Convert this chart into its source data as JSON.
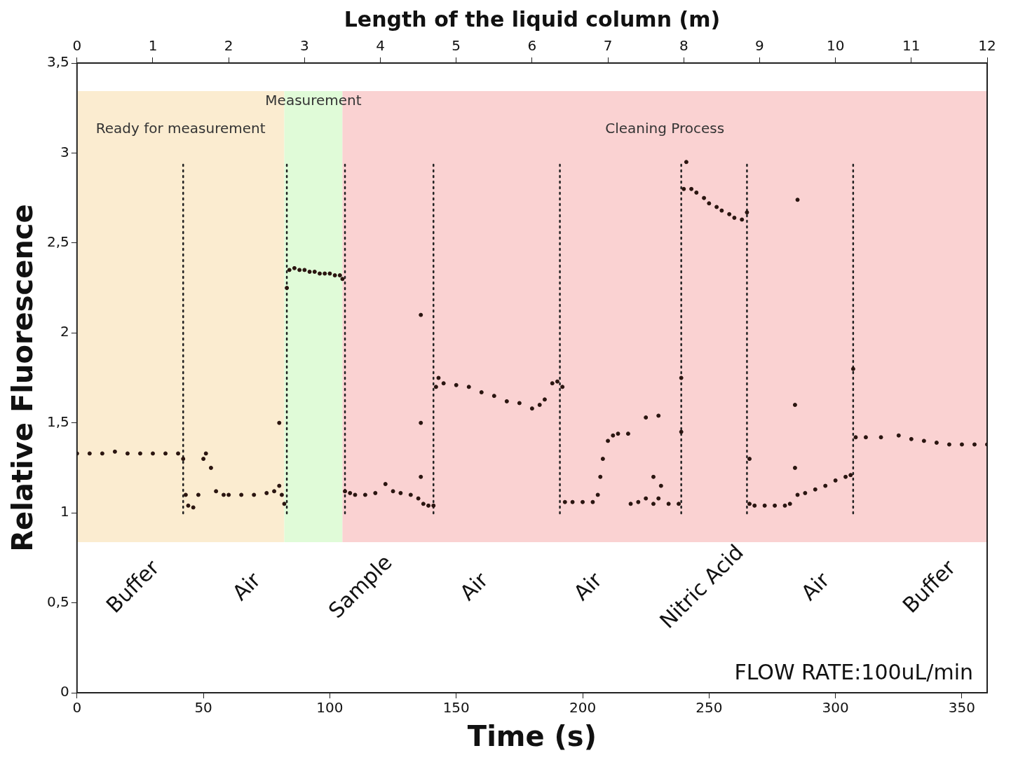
{
  "chart_data": {
    "type": "scatter",
    "xlabel": "Time (s)",
    "ylabel": "Relative Fluorescence",
    "x2label": "Length of the liquid column (m)",
    "xlim": [
      0,
      360
    ],
    "xticks": [
      0,
      50,
      100,
      150,
      200,
      250,
      300,
      350
    ],
    "x2lim": [
      0,
      12
    ],
    "x2ticks": [
      0,
      1,
      2,
      3,
      4,
      5,
      6,
      7,
      8,
      9,
      10,
      11,
      12
    ],
    "ylim": [
      0,
      3.5
    ],
    "yticks": [
      0,
      {
        "value": 0.5,
        "label": "0,5"
      },
      1,
      {
        "value": 1.5,
        "label": "1,5"
      },
      2,
      {
        "value": 2.5,
        "label": "2,5"
      },
      3,
      {
        "value": 3.5,
        "label": "3,5"
      }
    ],
    "grid": false,
    "legend": false,
    "marker": "circle",
    "bands": [
      {
        "axis": "x",
        "from": 0,
        "to": 82,
        "label": "Ready for measurement",
        "color": "#fbecd0"
      },
      {
        "axis": "x",
        "from": 82,
        "to": 105,
        "label": "Measurement",
        "color": "#e0fbd8"
      },
      {
        "axis": "x",
        "from": 105,
        "to": 360,
        "label": "Cleaning Process",
        "color": "#fad2d2"
      }
    ],
    "ref_lines": [
      {
        "axis": "x",
        "value": 42,
        "line_style": "dotted"
      },
      {
        "axis": "x",
        "value": 83,
        "line_style": "dotted"
      },
      {
        "axis": "x",
        "value": 106,
        "line_style": "dotted"
      },
      {
        "axis": "x",
        "value": 141,
        "line_style": "dotted"
      },
      {
        "axis": "x",
        "value": 191,
        "line_style": "dotted"
      },
      {
        "axis": "x",
        "value": 239,
        "line_style": "dotted"
      },
      {
        "axis": "x",
        "value": 265,
        "line_style": "dotted"
      },
      {
        "axis": "x",
        "value": 307,
        "line_style": "dotted"
      }
    ],
    "annotations": [
      "Buffer",
      "Air",
      "Sample",
      "Air",
      "Air",
      "Nitric Acid",
      "Air",
      "Buffer",
      "FLOW RATE:100uL/min"
    ],
    "series": [
      {
        "color": "#2a1510",
        "x": [
          0,
          5,
          10,
          15,
          20,
          25,
          30,
          35,
          40,
          42,
          43,
          44,
          46,
          48,
          50,
          51,
          53,
          55,
          58,
          60,
          65,
          70,
          75,
          78,
          80,
          80,
          81,
          82,
          83,
          84,
          86,
          88,
          90,
          92,
          94,
          96,
          98,
          100,
          102,
          104,
          105,
          106,
          108,
          110,
          114,
          118,
          122,
          125,
          128,
          132,
          135,
          136,
          136,
          136,
          137,
          139,
          141,
          142,
          143,
          145,
          150,
          155,
          160,
          165,
          170,
          175,
          180,
          183,
          185,
          188,
          190,
          192,
          193,
          196,
          200,
          204,
          206,
          207,
          208,
          210,
          212,
          214,
          218,
          219,
          222,
          225,
          225,
          228,
          228,
          230,
          230,
          231,
          234,
          238,
          239,
          239,
          240,
          241,
          243,
          245,
          248,
          250,
          253,
          255,
          258,
          260,
          263,
          265,
          266,
          266,
          268,
          272,
          276,
          280,
          282,
          284,
          284,
          285,
          285,
          288,
          292,
          296,
          300,
          304,
          306,
          307,
          308,
          312,
          318,
          325,
          330,
          335,
          340,
          345,
          350,
          355,
          360
        ],
        "values": [
          1.33,
          1.33,
          1.33,
          1.34,
          1.33,
          1.33,
          1.33,
          1.33,
          1.33,
          1.3,
          1.1,
          1.04,
          1.03,
          1.1,
          1.3,
          1.33,
          1.25,
          1.12,
          1.1,
          1.1,
          1.1,
          1.1,
          1.11,
          1.12,
          1.15,
          1.5,
          1.1,
          1.05,
          2.25,
          2.35,
          2.36,
          2.35,
          2.35,
          2.34,
          2.34,
          2.33,
          2.33,
          2.33,
          2.32,
          2.32,
          2.3,
          1.12,
          1.11,
          1.1,
          1.1,
          1.11,
          1.16,
          1.12,
          1.11,
          1.1,
          1.08,
          2.1,
          1.5,
          1.2,
          1.05,
          1.04,
          1.04,
          1.7,
          1.75,
          1.72,
          1.71,
          1.7,
          1.67,
          1.65,
          1.62,
          1.61,
          1.58,
          1.6,
          1.63,
          1.72,
          1.73,
          1.7,
          1.06,
          1.06,
          1.06,
          1.06,
          1.1,
          1.2,
          1.3,
          1.4,
          1.43,
          1.44,
          1.44,
          1.05,
          1.06,
          1.08,
          1.53,
          1.2,
          1.05,
          1.54,
          1.08,
          1.15,
          1.05,
          1.05,
          1.45,
          1.75,
          2.8,
          2.95,
          2.8,
          2.78,
          2.75,
          2.72,
          2.7,
          2.68,
          2.66,
          2.64,
          2.63,
          2.67,
          1.3,
          1.05,
          1.04,
          1.04,
          1.04,
          1.04,
          1.05,
          1.6,
          1.25,
          2.74,
          1.1,
          1.11,
          1.13,
          1.15,
          1.18,
          1.2,
          1.21,
          1.8,
          1.42,
          1.42,
          1.42,
          1.43,
          1.41,
          1.4,
          1.39,
          1.38,
          1.38,
          1.38,
          1.38
        ]
      }
    ]
  }
}
